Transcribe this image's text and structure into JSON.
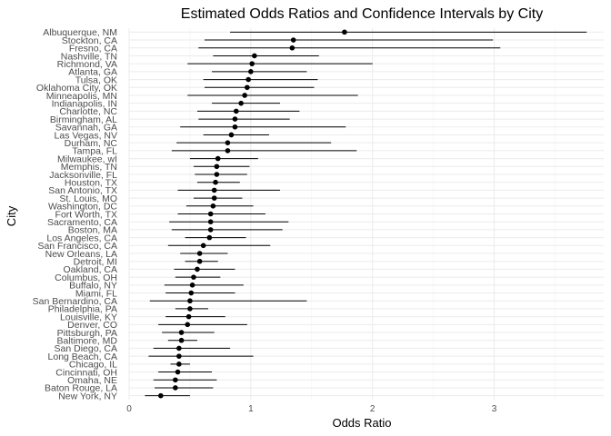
{
  "chart_data": {
    "type": "scatter",
    "title": "Estimated Odds Ratios and Confidence Intervals by City",
    "xlabel": "Odds Ratio",
    "ylabel": "City",
    "xlim": [
      0,
      3.9
    ],
    "xticks": [
      "0",
      "1",
      "2",
      "3"
    ],
    "grid": true,
    "colors": {
      "point": "#000000",
      "interval": "#000000",
      "grid": "#ebebeb",
      "text": "#4d4d4d"
    },
    "cities": [
      {
        "name": "Albuquerque, NM",
        "or": 1.77,
        "lo": 0.83,
        "hi": 3.76
      },
      {
        "name": "Stockton, CA",
        "or": 1.35,
        "lo": 0.62,
        "hi": 2.99
      },
      {
        "name": "Fresno, CA",
        "or": 1.34,
        "lo": 0.57,
        "hi": 3.05
      },
      {
        "name": "Nashville, TN",
        "or": 1.03,
        "lo": 0.69,
        "hi": 1.56
      },
      {
        "name": "Richmond, VA",
        "or": 1.01,
        "lo": 0.48,
        "hi": 2.0
      },
      {
        "name": "Atlanta, GA",
        "or": 1.0,
        "lo": 0.68,
        "hi": 1.46
      },
      {
        "name": "Tulsa, OK",
        "or": 0.98,
        "lo": 0.61,
        "hi": 1.55
      },
      {
        "name": "Oklahoma City, OK",
        "or": 0.97,
        "lo": 0.62,
        "hi": 1.52
      },
      {
        "name": "Minneapolis, MN",
        "or": 0.95,
        "lo": 0.48,
        "hi": 1.88
      },
      {
        "name": "Indianapolis, IN",
        "or": 0.92,
        "lo": 0.68,
        "hi": 1.24
      },
      {
        "name": "Charlotte, NC",
        "or": 0.88,
        "lo": 0.56,
        "hi": 1.4
      },
      {
        "name": "Birmingham, AL",
        "or": 0.87,
        "lo": 0.57,
        "hi": 1.32
      },
      {
        "name": "Savannah, GA",
        "or": 0.87,
        "lo": 0.42,
        "hi": 1.78
      },
      {
        "name": "Las Vegas, NV",
        "or": 0.84,
        "lo": 0.61,
        "hi": 1.15
      },
      {
        "name": "Durham, NC",
        "or": 0.81,
        "lo": 0.39,
        "hi": 1.66
      },
      {
        "name": "Tampa, FL",
        "or": 0.81,
        "lo": 0.35,
        "hi": 1.87
      },
      {
        "name": "Milwaukee, wI",
        "or": 0.73,
        "lo": 0.5,
        "hi": 1.06
      },
      {
        "name": "Memphis, TN",
        "or": 0.72,
        "lo": 0.53,
        "hi": 0.99
      },
      {
        "name": "Jacksonville, FL",
        "or": 0.72,
        "lo": 0.54,
        "hi": 0.97
      },
      {
        "name": "Houston, TX",
        "or": 0.71,
        "lo": 0.56,
        "hi": 0.91
      },
      {
        "name": "San Antonio, TX",
        "or": 0.7,
        "lo": 0.4,
        "hi": 1.24
      },
      {
        "name": "St. Louis, MO",
        "or": 0.7,
        "lo": 0.53,
        "hi": 0.93
      },
      {
        "name": "Washington, DC",
        "or": 0.69,
        "lo": 0.47,
        "hi": 1.02
      },
      {
        "name": "Fort Worth, TX",
        "or": 0.67,
        "lo": 0.4,
        "hi": 1.12
      },
      {
        "name": "Sacramento, CA",
        "or": 0.67,
        "lo": 0.33,
        "hi": 1.31
      },
      {
        "name": "Boston, MA",
        "or": 0.67,
        "lo": 0.35,
        "hi": 1.26
      },
      {
        "name": "Los Angeles, CA",
        "or": 0.66,
        "lo": 0.46,
        "hi": 0.96
      },
      {
        "name": "San Francisco, CA",
        "or": 0.61,
        "lo": 0.32,
        "hi": 1.16
      },
      {
        "name": "New Orleans, LA",
        "or": 0.58,
        "lo": 0.42,
        "hi": 0.81
      },
      {
        "name": "Detroit, MI",
        "or": 0.58,
        "lo": 0.46,
        "hi": 0.73
      },
      {
        "name": "Oakland, CA",
        "or": 0.56,
        "lo": 0.37,
        "hi": 0.87
      },
      {
        "name": "Columbus, OH",
        "or": 0.53,
        "lo": 0.38,
        "hi": 0.75
      },
      {
        "name": "Buffalo, NY",
        "or": 0.52,
        "lo": 0.29,
        "hi": 0.94
      },
      {
        "name": "Miami, FL",
        "or": 0.51,
        "lo": 0.3,
        "hi": 0.87
      },
      {
        "name": "San Bernardino, CA",
        "or": 0.5,
        "lo": 0.17,
        "hi": 1.46
      },
      {
        "name": "Philadelphia, PA",
        "or": 0.5,
        "lo": 0.38,
        "hi": 0.65
      },
      {
        "name": "Louisville, KY",
        "or": 0.49,
        "lo": 0.3,
        "hi": 0.79
      },
      {
        "name": "Denver, CO",
        "or": 0.48,
        "lo": 0.24,
        "hi": 0.97
      },
      {
        "name": "Pittsburgh, PA",
        "or": 0.43,
        "lo": 0.27,
        "hi": 0.7
      },
      {
        "name": "Baltimore, MD",
        "or": 0.43,
        "lo": 0.32,
        "hi": 0.56
      },
      {
        "name": "San Diego, CA",
        "or": 0.41,
        "lo": 0.2,
        "hi": 0.83
      },
      {
        "name": "Long Beach, CA",
        "or": 0.41,
        "lo": 0.16,
        "hi": 1.02
      },
      {
        "name": "Chicago, IL",
        "or": 0.41,
        "lo": 0.34,
        "hi": 0.5
      },
      {
        "name": "Cincinnati, OH",
        "or": 0.4,
        "lo": 0.24,
        "hi": 0.68
      },
      {
        "name": "Omaha, NE",
        "or": 0.38,
        "lo": 0.2,
        "hi": 0.72
      },
      {
        "name": "Baton Rouge, LA",
        "or": 0.38,
        "lo": 0.21,
        "hi": 0.69
      },
      {
        "name": "New York, NY",
        "or": 0.26,
        "lo": 0.13,
        "hi": 0.5
      }
    ]
  }
}
